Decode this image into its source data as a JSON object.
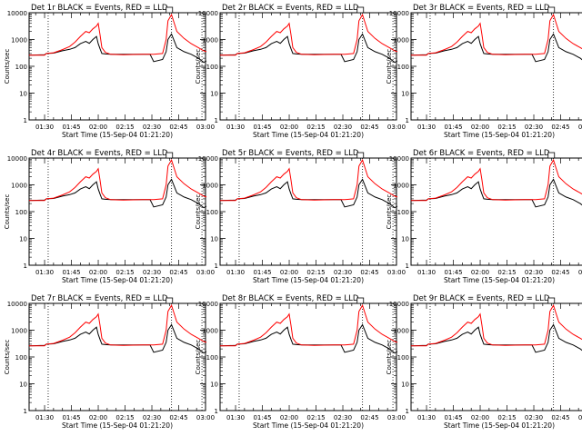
{
  "chart_data": {
    "type": "line",
    "x_tick_labels": [
      "01:30",
      "01:45",
      "02:00",
      "02:15",
      "02:30",
      "02:45",
      "03:00"
    ],
    "x_ticks_minutes_after_0130": [
      0,
      15,
      30,
      45,
      60,
      75,
      90
    ],
    "xlim_time": [
      "01:21:20",
      "03:00:00"
    ],
    "xlabel": "Start Time (15-Sep-04 01:21:20)",
    "ylabel": "Counts/sec",
    "y_scale": "log",
    "ylim": [
      1,
      10000
    ],
    "y_tick_labels": [
      "1",
      "10",
      "100",
      "1000",
      "10000"
    ],
    "dotted_vertical_lines_time": [
      "01:32",
      "02:41",
      "02:58"
    ],
    "x_minutes_after_0130": [
      -8.7,
      0,
      1,
      5,
      10,
      14,
      17,
      20,
      23,
      25,
      27,
      29,
      30,
      31,
      32,
      34,
      37,
      44,
      55,
      59,
      61,
      66,
      68,
      69,
      71,
      74,
      78,
      82,
      86,
      89,
      90.5
    ],
    "series": [
      {
        "name": "Events",
        "color": "#000000",
        "values": [
          260,
          270,
          300,
          310,
          380,
          430,
          500,
          700,
          850,
          720,
          1000,
          1300,
          700,
          450,
          300,
          290,
          280,
          280,
          280,
          280,
          150,
          180,
          350,
          1000,
          1600,
          500,
          350,
          280,
          200,
          140,
          160
        ]
      },
      {
        "name": "LLD",
        "color": "#ff0000",
        "values": [
          260,
          260,
          300,
          320,
          420,
          550,
          800,
          1300,
          2000,
          1800,
          2500,
          3200,
          4000,
          1500,
          500,
          330,
          280,
          270,
          280,
          280,
          280,
          300,
          1000,
          5000,
          8500,
          2000,
          1100,
          700,
          500,
          380,
          350
        ]
      }
    ],
    "panels": [
      {
        "title": "Det 1r BLACK = Events, RED = LLD"
      },
      {
        "title": "Det 2r BLACK = Events, RED = LLD"
      },
      {
        "title": "Det 3r BLACK = Events, RED = LLD"
      },
      {
        "title": "Det 4r BLACK = Events, RED = LLD"
      },
      {
        "title": "Det 5r BLACK = Events, RED = LLD"
      },
      {
        "title": "Det 6r BLACK = Events, RED = LLD"
      },
      {
        "title": "Det 7r BLACK = Events, RED = LLD"
      },
      {
        "title": "Det 8r BLACK = Events, RED = LLD"
      },
      {
        "title": "Det 9r BLACK = Events, RED = LLD"
      }
    ]
  }
}
